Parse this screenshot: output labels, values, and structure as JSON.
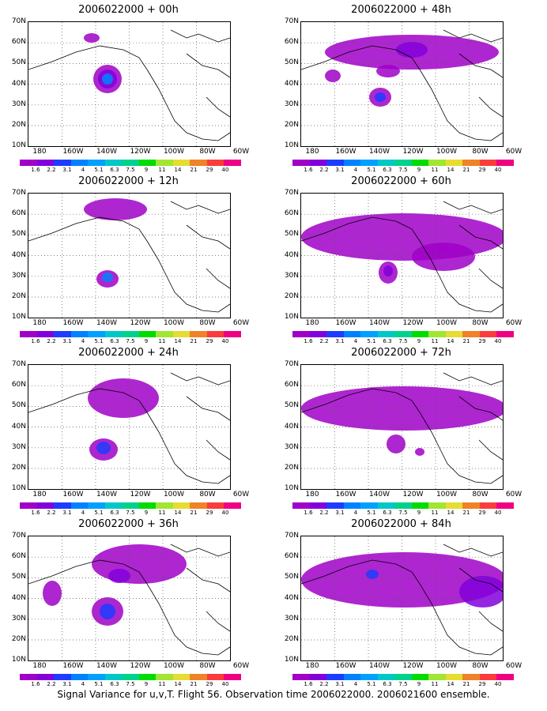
{
  "panels": [
    {
      "title": "2006022000 + 00h"
    },
    {
      "title": "2006022000 + 48h"
    },
    {
      "title": "2006022000 + 12h"
    },
    {
      "title": "2006022000 + 60h"
    },
    {
      "title": "2006022000 + 24h"
    },
    {
      "title": "2006022000 + 72h"
    },
    {
      "title": "2006022000 + 36h"
    },
    {
      "title": "2006022000 + 84h"
    }
  ],
  "lat_labels": [
    "70N",
    "60N",
    "50N",
    "40N",
    "30N",
    "20N",
    "10N"
  ],
  "lon_labels": [
    "180",
    "160W",
    "140W",
    "120W",
    "100W",
    "80W",
    "60W"
  ],
  "colorbar": {
    "labels": [
      "1.6",
      "2.2",
      "3.1",
      "4",
      "5.1",
      "6.3",
      "7.5",
      "9",
      "11",
      "14",
      "21",
      "29",
      "40"
    ],
    "colors": [
      "#a000c8",
      "#8200dc",
      "#1e3cff",
      "#0082ff",
      "#00a0ff",
      "#00c8c8",
      "#00d28c",
      "#00dc00",
      "#a0e632",
      "#e6dc32",
      "#f08228",
      "#fa3c3c",
      "#f00082"
    ]
  },
  "caption": "Signal Variance for u,v,T. Flight 56. Observation time 2006022000. 2006021600 ensemble."
}
